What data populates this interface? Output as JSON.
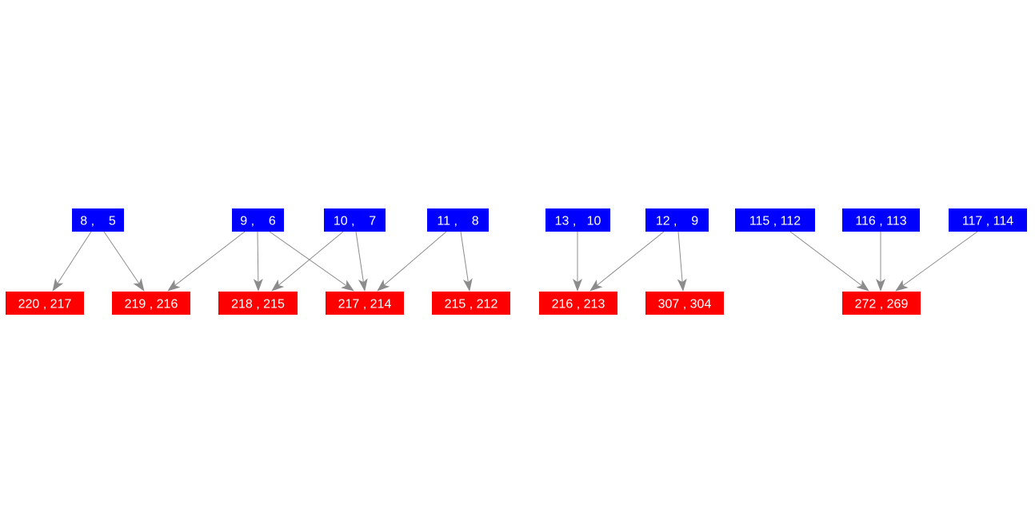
{
  "colors": {
    "source_fill": "#0000ff",
    "target_fill": "#ff0000",
    "label_text": "#ffffff",
    "edge": "#8c8c8c",
    "background": "#ffffff"
  },
  "source_nodes": [
    {
      "id": "s1",
      "label": "8 ,    5"
    },
    {
      "id": "s2",
      "label": "9 ,    6"
    },
    {
      "id": "s3",
      "label": "10 ,    7"
    },
    {
      "id": "s4",
      "label": "11 ,    8"
    },
    {
      "id": "s5",
      "label": "13 ,   10"
    },
    {
      "id": "s6",
      "label": "12 ,    9"
    },
    {
      "id": "s7",
      "label": "115 , 112"
    },
    {
      "id": "s8",
      "label": "116 , 113"
    },
    {
      "id": "s9",
      "label": "117 , 114"
    }
  ],
  "target_nodes": [
    {
      "id": "t1",
      "label": "220 , 217"
    },
    {
      "id": "t2",
      "label": "219 , 216"
    },
    {
      "id": "t3",
      "label": "218 , 215"
    },
    {
      "id": "t4",
      "label": "217 , 214"
    },
    {
      "id": "t5",
      "label": "215 , 212"
    },
    {
      "id": "t6",
      "label": "216 , 213"
    },
    {
      "id": "t7",
      "label": "307 , 304"
    },
    {
      "id": "t8",
      "label": "272 , 269"
    }
  ],
  "edges": [
    {
      "from": "s1",
      "to": "t1"
    },
    {
      "from": "s1",
      "to": "t2"
    },
    {
      "from": "s2",
      "to": "t2"
    },
    {
      "from": "s2",
      "to": "t3"
    },
    {
      "from": "s2",
      "to": "t4"
    },
    {
      "from": "s3",
      "to": "t3"
    },
    {
      "from": "s3",
      "to": "t4"
    },
    {
      "from": "s4",
      "to": "t4"
    },
    {
      "from": "s4",
      "to": "t5"
    },
    {
      "from": "s5",
      "to": "t6"
    },
    {
      "from": "s6",
      "to": "t6"
    },
    {
      "from": "s6",
      "to": "t7"
    },
    {
      "from": "s7",
      "to": "t8"
    },
    {
      "from": "s8",
      "to": "t8"
    },
    {
      "from": "s9",
      "to": "t8"
    }
  ]
}
